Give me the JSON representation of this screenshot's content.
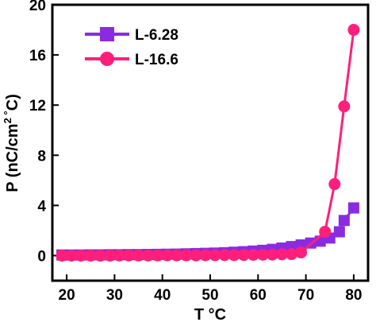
{
  "chart_data": {
    "type": "line",
    "xlabel": "T °C",
    "ylabel_parts": [
      "P (nC/cm",
      "2",
      " °",
      "C)"
    ],
    "xlim": [
      17,
      83
    ],
    "ylim": [
      -2,
      20
    ],
    "x_ticks": [
      20,
      30,
      40,
      50,
      60,
      70,
      80
    ],
    "y_ticks": [
      0,
      4,
      8,
      12,
      16,
      20
    ],
    "grid": false,
    "legend_position": "top-left",
    "series": [
      {
        "name": "L-6.28",
        "color": "#8a2be2",
        "marker": "square",
        "x": [
          19,
          21,
          23,
          25,
          27,
          29,
          31,
          33,
          35,
          37,
          39,
          41,
          43,
          45,
          47,
          49,
          51,
          53,
          55,
          57,
          59,
          61,
          63,
          65,
          67,
          69,
          71,
          73,
          75,
          77,
          78,
          80
        ],
        "y": [
          0.05,
          0.05,
          0.05,
          0.06,
          0.06,
          0.07,
          0.07,
          0.08,
          0.08,
          0.09,
          0.1,
          0.11,
          0.12,
          0.14,
          0.16,
          0.18,
          0.2,
          0.23,
          0.27,
          0.31,
          0.36,
          0.42,
          0.5,
          0.6,
          0.72,
          0.85,
          1.0,
          1.15,
          1.4,
          1.9,
          2.8,
          3.8
        ]
      },
      {
        "name": "L-16.6",
        "color": "#ff1f7a",
        "marker": "circle",
        "x": [
          19,
          21,
          23,
          25,
          27,
          29,
          31,
          33,
          35,
          37,
          39,
          41,
          43,
          45,
          47,
          49,
          51,
          53,
          55,
          57,
          59,
          61,
          63,
          65,
          67,
          69,
          74,
          76,
          78,
          80
        ],
        "y": [
          0.0,
          0.0,
          0.0,
          0.0,
          0.0,
          0.0,
          0.01,
          0.01,
          0.01,
          0.01,
          0.01,
          0.02,
          0.02,
          0.02,
          0.02,
          0.03,
          0.03,
          0.04,
          0.04,
          0.05,
          0.06,
          0.07,
          0.08,
          0.1,
          0.12,
          0.25,
          1.9,
          5.7,
          11.9,
          18.0
        ]
      }
    ]
  }
}
